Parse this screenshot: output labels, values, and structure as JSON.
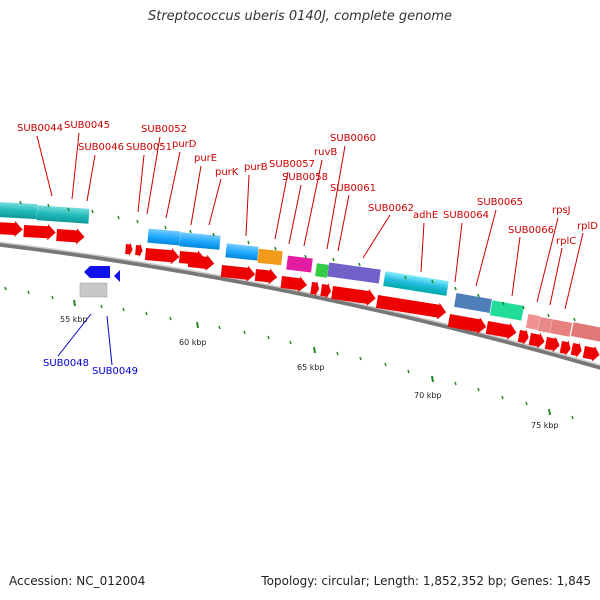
{
  "title": "Streptococcus uberis 0140J, complete genome",
  "footer": {
    "accession": "Accession: NC_012004",
    "summary": "Topology: circular; Length: 1,852,352 bp; Genes: 1,845"
  },
  "kbp_labels": [
    "55 kbp",
    "60 kbp",
    "65 kbp",
    "70 kbp",
    "75 kbp"
  ],
  "gene_labels_top": [
    "SUB0044",
    "SUB0045",
    "SUB0046",
    "SUB0051",
    "SUB0052",
    "purD",
    "purE",
    "purK",
    "purB",
    "SUB0057",
    "SUB0058",
    "ruvB",
    "SUB0060",
    "SUB0061",
    "SUB0062",
    "adhE",
    "SUB0064",
    "SUB0065",
    "SUB0066",
    "rpsJ",
    "rplC",
    "rplD"
  ],
  "gene_labels_bottom": [
    "SUB0048",
    "SUB0049"
  ],
  "colors": {
    "label_forward": "#cc0000",
    "label_reverse": "#0000cc",
    "cds_arrow": "#ee0000",
    "backbone": "#888888",
    "tick": "#228822"
  }
}
